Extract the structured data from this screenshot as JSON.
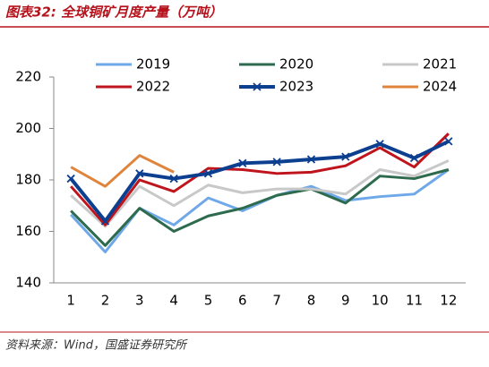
{
  "chart_data": {
    "type": "line",
    "title": "图表32: 全球铜矿月度产量（万吨）",
    "source": "资料来源：Wind，国盛证券研究所",
    "categories": [
      "1",
      "2",
      "3",
      "4",
      "5",
      "6",
      "7",
      "8",
      "9",
      "10",
      "11",
      "12"
    ],
    "ylim": [
      140,
      220
    ],
    "yticks": [
      140,
      160,
      180,
      200,
      220
    ],
    "grid": false,
    "series": [
      {
        "name": "2019",
        "color": "#6fa8e8",
        "values": [
          166.5,
          152,
          169,
          162.5,
          173,
          168,
          174,
          177.5,
          172,
          173.5,
          174.5,
          184
        ]
      },
      {
        "name": "2020",
        "color": "#2e6b4e",
        "values": [
          168,
          154.5,
          169,
          160,
          166,
          169,
          174,
          176.5,
          171,
          181.5,
          180.5,
          184
        ]
      },
      {
        "name": "2021",
        "color": "#c8c8c8",
        "values": [
          174,
          162,
          177.5,
          170,
          178,
          175,
          176.5,
          176.5,
          174.5,
          184,
          181.5,
          187.5
        ]
      },
      {
        "name": "2022",
        "color": "#c0141c",
        "values": [
          177.5,
          162.5,
          180,
          175.5,
          184.5,
          184,
          182.5,
          183,
          185.5,
          192.5,
          185,
          198
        ]
      },
      {
        "name": "2023",
        "color": "#0c3f8f",
        "marker": "x",
        "values": [
          180.5,
          164,
          182.5,
          180.5,
          182.5,
          186.5,
          187,
          188,
          189,
          194,
          188.5,
          195
        ]
      },
      {
        "name": "2024",
        "color": "#e0843c",
        "values": [
          185,
          177.5,
          189.5,
          183,
          null,
          null,
          null,
          null,
          null,
          null,
          null,
          null
        ]
      }
    ]
  }
}
